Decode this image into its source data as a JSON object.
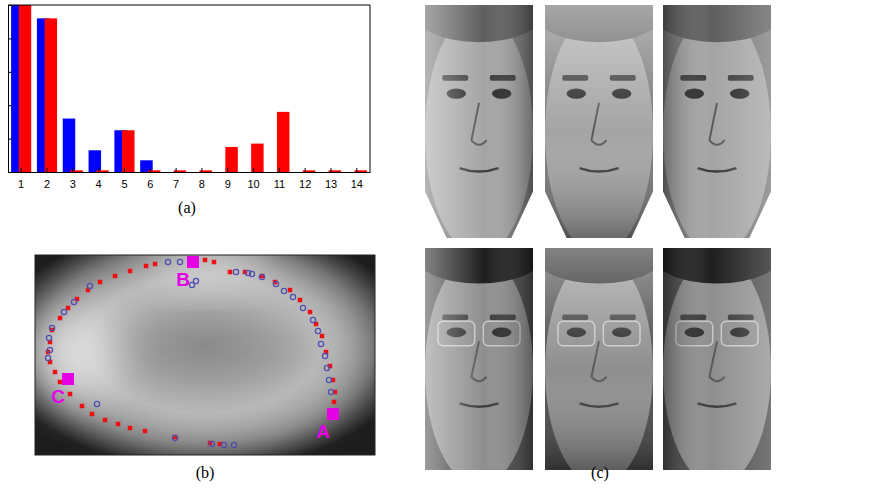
{
  "chart_data": [
    {
      "type": "bar",
      "title": "(a)",
      "categories": [
        "1",
        "2",
        "3",
        "4",
        "5",
        "6",
        "7",
        "8",
        "9",
        "10",
        "11",
        "12",
        "13",
        "14"
      ],
      "series": [
        {
          "color": "#0000ff",
          "values": [
            1.0,
            0.92,
            0.32,
            0.13,
            0.25,
            0.07,
            0,
            0,
            0,
            0,
            0,
            0,
            0,
            0
          ]
        },
        {
          "color": "#ff0000",
          "values": [
            1.0,
            0.92,
            0.01,
            0.01,
            0.25,
            0.01,
            0.01,
            0.01,
            0.15,
            0.17,
            0.36,
            0.01,
            0.01,
            0.01
          ]
        }
      ],
      "ylim": [
        0,
        1
      ],
      "yticks": [
        0,
        0.2,
        0.4,
        0.6,
        0.8,
        1
      ],
      "tick_labels": "x",
      "grid": false
    },
    {
      "type": "scatter",
      "title": "(b)",
      "xlim": [
        0,
        340
      ],
      "ylim": [
        0,
        200
      ],
      "tick_labels": false,
      "grid": false,
      "series": [
        {
          "color": "#ee1111",
          "marker": "square",
          "x": [
            120,
            111,
            95,
            80,
            65,
            53,
            42,
            33,
            25,
            17,
            15,
            13,
            15,
            20,
            25,
            35,
            47,
            57,
            70,
            83,
            95,
            110,
            140,
            175,
            185,
            170,
            179,
            195,
            210,
            227,
            240,
            255,
            265,
            275,
            281,
            287,
            291,
            295,
            298,
            300,
            299
          ],
          "values": [
            191,
            189,
            184,
            179,
            173,
            165,
            156,
            147,
            137,
            125,
            113,
            103,
            93,
            83,
            73,
            61,
            49,
            41,
            35,
            31,
            27,
            24,
            18,
            12,
            11,
            195,
            193,
            183,
            183,
            179,
            173,
            165,
            155,
            143,
            131,
            119,
            103,
            89,
            75,
            63,
            53
          ]
        },
        {
          "color": "#5050b0",
          "marker": "circle",
          "x": [
            133,
            145,
            157,
            161,
            201,
            213,
            217,
            227,
            241,
            249,
            258,
            268,
            278,
            283,
            286,
            290,
            292,
            294,
            296,
            55,
            39,
            29,
            17,
            14,
            15,
            13,
            62,
            140,
            177,
            189,
            199
          ],
          "values": [
            193,
            193,
            170,
            174,
            183,
            182,
            181,
            178,
            171,
            164,
            158,
            147,
            135,
            124,
            111,
            99,
            87,
            75,
            63,
            169,
            153,
            143,
            127,
            117,
            105,
            97,
            51,
            17,
            11,
            10,
            10
          ]
        },
        {
          "color": "#e600e6",
          "marker": "square",
          "x": [
            298,
            158,
            33
          ],
          "values": [
            41,
            193,
            76
          ],
          "labels": [
            "A",
            "B",
            "C"
          ]
        }
      ]
    }
  ],
  "photo_panel": {
    "title": "(c)"
  }
}
